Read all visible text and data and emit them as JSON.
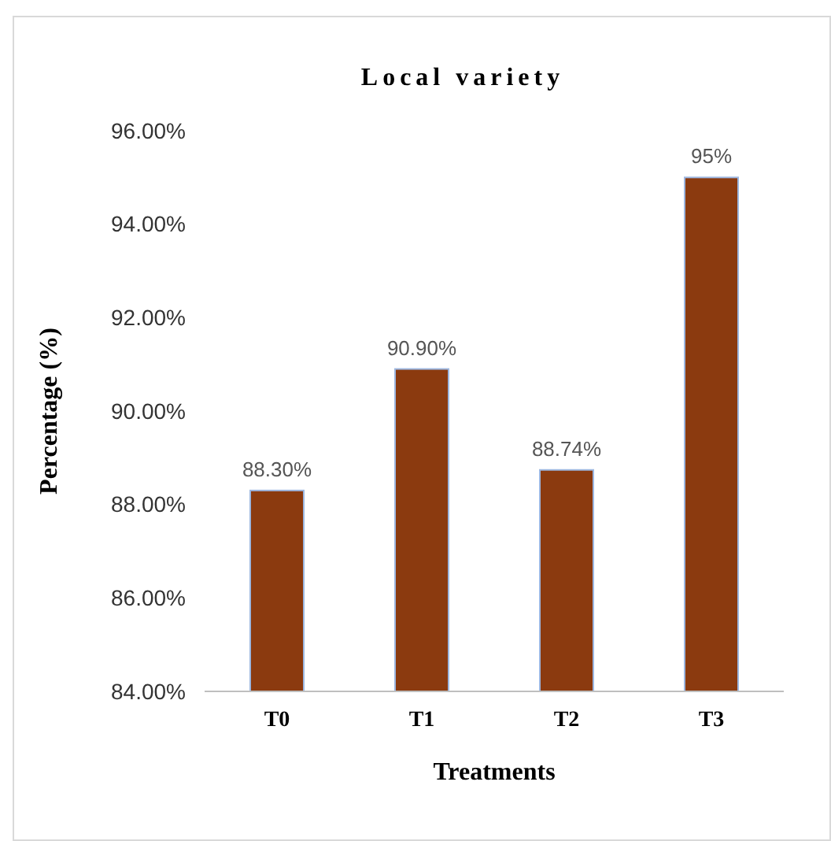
{
  "chart_data": {
    "type": "bar",
    "title": "Local variety",
    "xlabel": "Treatments",
    "ylabel": "Percentage (%)",
    "categories": [
      "T0",
      "T1",
      "T2",
      "T3"
    ],
    "values": [
      88.3,
      90.9,
      88.74,
      95
    ],
    "value_labels": [
      "88.30%",
      "90.90%",
      "88.74%",
      "95%"
    ],
    "color": "#8b3a0f",
    "ylim": [
      84,
      96
    ],
    "yticks": [
      {
        "value": 84,
        "label": "84.00%"
      },
      {
        "value": 86,
        "label": "86.00%"
      },
      {
        "value": 88,
        "label": "88.00%"
      },
      {
        "value": 90,
        "label": "90.00%"
      },
      {
        "value": 92,
        "label": "92.00%"
      },
      {
        "value": 94,
        "label": "94.00%"
      },
      {
        "value": 96,
        "label": "96.00%"
      }
    ],
    "grid": false
  }
}
